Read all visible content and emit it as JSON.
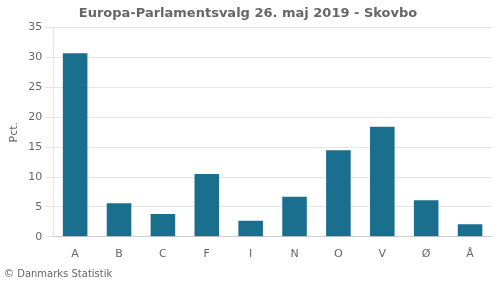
{
  "chart_data": {
    "type": "bar",
    "title": "Europa-Parlamentsvalg 26. maj 2019 - Skovbo",
    "ylabel": "Pct.",
    "footer": "© Danmarks Statistik",
    "categories": [
      "A",
      "B",
      "C",
      "F",
      "I",
      "N",
      "O",
      "V",
      "Ø",
      "Å"
    ],
    "values": [
      30.7,
      5.6,
      3.8,
      10.5,
      2.7,
      6.7,
      14.5,
      18.4,
      6.1,
      2.1
    ],
    "color": "#1a6e8e",
    "ylim": [
      0,
      35
    ],
    "yticks": [
      0,
      5,
      10,
      15,
      20,
      25,
      30,
      35
    ],
    "grid": true
  }
}
